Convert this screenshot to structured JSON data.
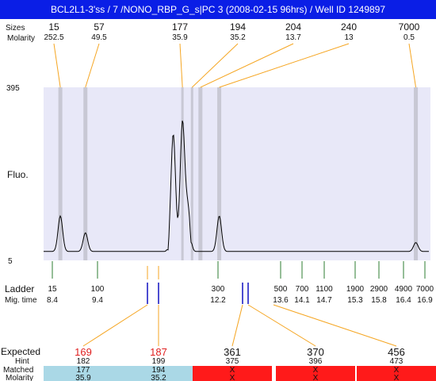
{
  "title": "BCL2L1-3'ss / 7 /NONO_RBP_G_s|PC 3 (2008-02-15 96hrs) / Well ID 1249897",
  "labels": {
    "sizes": "Sizes",
    "molarity": "Molarity",
    "fluo": "Fluo.",
    "ladder": "Ladder",
    "mig_time": "Mig. time",
    "expected": "Expected",
    "hint": "Hint",
    "matched": "Matched",
    "molarity_bottom": "Molarity"
  },
  "colors": {
    "title_bar": "#0a1ee6",
    "plot_bg": "#e8e8f8",
    "band": "#c8c8d4",
    "orange": "#f5a623",
    "green": "#2e7d32",
    "ladder_blue": "#1010c0",
    "expected_red": "#e02020",
    "matched_blue": "#aad8e6",
    "unmatched_red": "#ff1a1a"
  },
  "chart_data": {
    "type": "line",
    "ylim": [
      5,
      395
    ],
    "y_ticks": [
      "395",
      "5"
    ],
    "ylabel": "Fluo.",
    "top_peaks": [
      {
        "size": "15",
        "molarity": "252.5",
        "time": 8.4
      },
      {
        "size": "57",
        "molarity": "49.5",
        "time": 9.0
      },
      {
        "size": "177",
        "molarity": "35.9",
        "time": 11.32
      },
      {
        "size": "194",
        "molarity": "35.2",
        "time": 11.55
      },
      {
        "size": "204",
        "molarity": "13.7",
        "time": 11.75
      },
      {
        "size": "240",
        "molarity": "13",
        "time": 12.2
      },
      {
        "size": "7000",
        "molarity": "0.5",
        "time": 16.9
      }
    ],
    "ladder": [
      {
        "size": "15",
        "time": "8.4"
      },
      {
        "size": "100",
        "time": "9.4"
      },
      {
        "size": "300",
        "time": "12.2"
      },
      {
        "size": "500",
        "time": "13.6"
      },
      {
        "size": "700",
        "time": "14.1"
      },
      {
        "size": "1100",
        "time": "14.7"
      },
      {
        "size": "1900",
        "time": "15.3"
      },
      {
        "size": "2900",
        "time": "15.8"
      },
      {
        "size": "4900",
        "time": "16.4"
      },
      {
        "size": "7000",
        "time": "16.9"
      }
    ],
    "trace": {
      "baseline": 25,
      "peaks": [
        {
          "time": 8.4,
          "height": 105
        },
        {
          "time": 9.0,
          "height": 67
        },
        {
          "time": 11.1,
          "height": 290
        },
        {
          "time": 11.32,
          "height": 315
        },
        {
          "time": 11.45,
          "height": 120
        },
        {
          "time": 12.2,
          "height": 105
        },
        {
          "time": 16.9,
          "height": 45
        }
      ]
    },
    "expected": [
      {
        "expected": "169",
        "hint": "182",
        "matched": "177",
        "molarity": "35.9",
        "found": true
      },
      {
        "expected": "187",
        "hint": "199",
        "matched": "194",
        "molarity": "35.2",
        "found": true
      },
      {
        "expected": "361",
        "hint": "375",
        "matched": "X",
        "molarity": "X",
        "found": false
      },
      {
        "expected": "370",
        "hint": "396",
        "matched": "X",
        "molarity": "X",
        "found": false
      },
      {
        "expected": "456",
        "hint": "473",
        "matched": "X",
        "molarity": "X",
        "found": false
      }
    ]
  }
}
